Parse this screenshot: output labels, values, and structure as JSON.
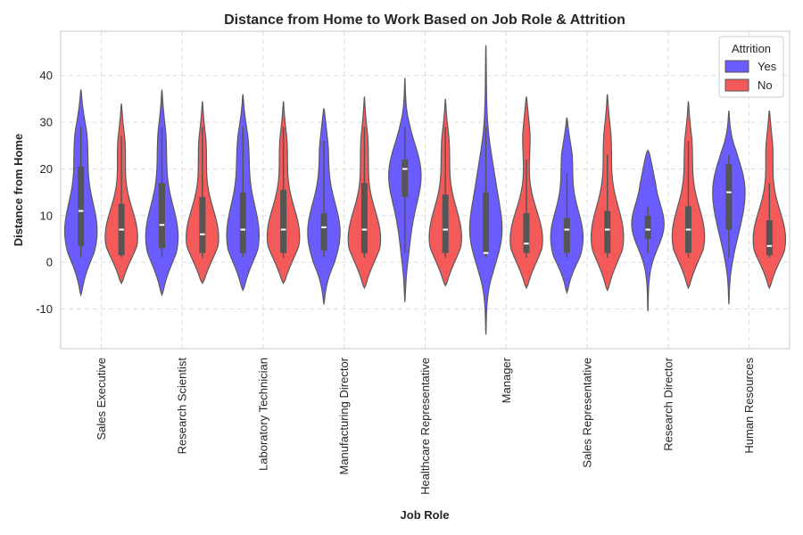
{
  "chart_data": {
    "type": "violin",
    "title": "Distance from Home to Work Based on Job Role & Attrition",
    "xlabel": "Job Role",
    "ylabel": "Distance from Home",
    "ylim": [
      -18.5,
      49.5
    ],
    "yticks": [
      -10,
      0,
      10,
      20,
      30,
      40
    ],
    "grid": true,
    "legend": {
      "title": "Attrition",
      "placement": "top-right"
    },
    "categories": [
      "Sales Executive",
      "Research Scientist",
      "Laboratory Technician",
      "Manufacturing Director",
      "Healthcare Representative",
      "Manager",
      "Sales Representative",
      "Research Director",
      "Human Resources"
    ],
    "series": [
      {
        "name": "Yes",
        "color": "#6a5cff",
        "stats": [
          {
            "min": -7,
            "max": 37,
            "q1": 3.5,
            "median": 11,
            "q3": 20.5,
            "whisker_low": 1,
            "whisker_high": 29,
            "modes": [
              {
                "y": 4,
                "w": 0.75
              },
              {
                "y": 10,
                "w": 0.6
              },
              {
                "y": 25,
                "w": 0.45
              }
            ]
          },
          {
            "min": -7,
            "max": 37,
            "q1": 3,
            "median": 8,
            "q3": 17,
            "whisker_low": 1,
            "whisker_high": 29,
            "modes": [
              {
                "y": 3,
                "w": 0.8
              },
              {
                "y": 9,
                "w": 0.6
              },
              {
                "y": 25,
                "w": 0.3
              }
            ]
          },
          {
            "min": -6,
            "max": 36,
            "q1": 2,
            "median": 7,
            "q3": 15,
            "whisker_low": 1,
            "whisker_high": 29,
            "modes": [
              {
                "y": 3,
                "w": 0.75
              },
              {
                "y": 10,
                "w": 0.55
              },
              {
                "y": 24,
                "w": 0.35
              }
            ]
          },
          {
            "min": -9,
            "max": 33,
            "q1": 2.5,
            "median": 7.5,
            "q3": 10.5,
            "whisker_low": 1,
            "whisker_high": 26,
            "modes": [
              {
                "y": 4,
                "w": 0.85
              },
              {
                "y": 10,
                "w": 0.6
              },
              {
                "y": 25,
                "w": 0.3
              }
            ]
          },
          {
            "min": -8.5,
            "max": 39.5,
            "q1": 14,
            "median": 20,
            "q3": 22,
            "whisker_low": 2,
            "whisker_high": 29,
            "modes": [
              {
                "y": 19,
                "w": 0.85
              },
              {
                "y": 6,
                "w": 0.2
              }
            ]
          },
          {
            "min": -15.5,
            "max": 46.5,
            "q1": 2,
            "median": 2,
            "q3": 15,
            "whisker_low": 1,
            "whisker_high": 29,
            "modes": [
              {
                "y": 6,
                "w": 0.7
              },
              {
                "y": 18,
                "w": 0.3
              }
            ]
          },
          {
            "min": -6.5,
            "max": 31,
            "q1": 2,
            "median": 7,
            "q3": 9.5,
            "whisker_low": 1,
            "whisker_high": 19,
            "modes": [
              {
                "y": 3,
                "w": 0.8
              },
              {
                "y": 9,
                "w": 0.55
              },
              {
                "y": 22,
                "w": 0.35
              }
            ]
          },
          {
            "min": -10.5,
            "max": 24,
            "q1": 5,
            "median": 7,
            "q3": 10,
            "whisker_low": 2,
            "whisker_high": 12,
            "modes": [
              {
                "y": 8,
                "w": 0.9
              },
              {
                "y": 20,
                "w": 0.3
              }
            ]
          },
          {
            "min": -9,
            "max": 32.5,
            "q1": 7,
            "median": 15,
            "q3": 21,
            "whisker_low": 1,
            "whisker_high": 23,
            "modes": [
              {
                "y": 17,
                "w": 0.8
              },
              {
                "y": 8,
                "w": 0.45
              }
            ]
          }
        ]
      },
      {
        "name": "No",
        "color": "#f55a5a",
        "stats": [
          {
            "min": -4.5,
            "max": 34,
            "q1": 1.5,
            "median": 7,
            "q3": 12.5,
            "whisker_low": 1,
            "whisker_high": 27,
            "modes": [
              {
                "y": 3.5,
                "w": 0.95
              },
              {
                "y": 9,
                "w": 0.6
              },
              {
                "y": 24,
                "w": 0.3
              }
            ]
          },
          {
            "min": -4.5,
            "max": 34.5,
            "q1": 2,
            "median": 6,
            "q3": 14,
            "whisker_low": 1,
            "whisker_high": 29,
            "modes": [
              {
                "y": 3,
                "w": 0.95
              },
              {
                "y": 9,
                "w": 0.65
              },
              {
                "y": 24,
                "w": 0.3
              }
            ]
          },
          {
            "min": -4.5,
            "max": 34.5,
            "q1": 2,
            "median": 7,
            "q3": 15.5,
            "whisker_low": 1,
            "whisker_high": 29,
            "modes": [
              {
                "y": 3,
                "w": 0.9
              },
              {
                "y": 9,
                "w": 0.7
              },
              {
                "y": 24,
                "w": 0.3
              }
            ]
          },
          {
            "min": -5.5,
            "max": 35.5,
            "q1": 2,
            "median": 7,
            "q3": 17,
            "whisker_low": 1,
            "whisker_high": 29,
            "modes": [
              {
                "y": 3,
                "w": 0.9
              },
              {
                "y": 8,
                "w": 0.65
              },
              {
                "y": 24,
                "w": 0.3
              }
            ]
          },
          {
            "min": -5,
            "max": 35,
            "q1": 2,
            "median": 7,
            "q3": 14.5,
            "whisker_low": 1,
            "whisker_high": 29,
            "modes": [
              {
                "y": 3,
                "w": 0.9
              },
              {
                "y": 9,
                "w": 0.65
              },
              {
                "y": 24,
                "w": 0.3
              }
            ]
          },
          {
            "min": -5.5,
            "max": 35.5,
            "q1": 2,
            "median": 4,
            "q3": 10.5,
            "whisker_low": 1,
            "whisker_high": 22,
            "modes": [
              {
                "y": 3,
                "w": 0.95
              },
              {
                "y": 8,
                "w": 0.6
              },
              {
                "y": 27,
                "w": 0.3
              }
            ]
          },
          {
            "min": -6,
            "max": 36,
            "q1": 2,
            "median": 7,
            "q3": 11,
            "whisker_low": 1,
            "whisker_high": 23,
            "modes": [
              {
                "y": 3,
                "w": 0.9
              },
              {
                "y": 9,
                "w": 0.65
              },
              {
                "y": 25,
                "w": 0.3
              }
            ]
          },
          {
            "min": -5.5,
            "max": 34.5,
            "q1": 2,
            "median": 7,
            "q3": 12,
            "whisker_low": 1,
            "whisker_high": 26,
            "modes": [
              {
                "y": 3,
                "w": 0.9
              },
              {
                "y": 9,
                "w": 0.7
              },
              {
                "y": 24,
                "w": 0.3
              }
            ]
          },
          {
            "min": -5.5,
            "max": 32.5,
            "q1": 1.5,
            "median": 3.5,
            "q3": 9,
            "whisker_low": 1,
            "whisker_high": 17,
            "modes": [
              {
                "y": 3,
                "w": 0.95
              },
              {
                "y": 9,
                "w": 0.55
              },
              {
                "y": 24,
                "w": 0.25
              }
            ]
          }
        ]
      }
    ]
  }
}
